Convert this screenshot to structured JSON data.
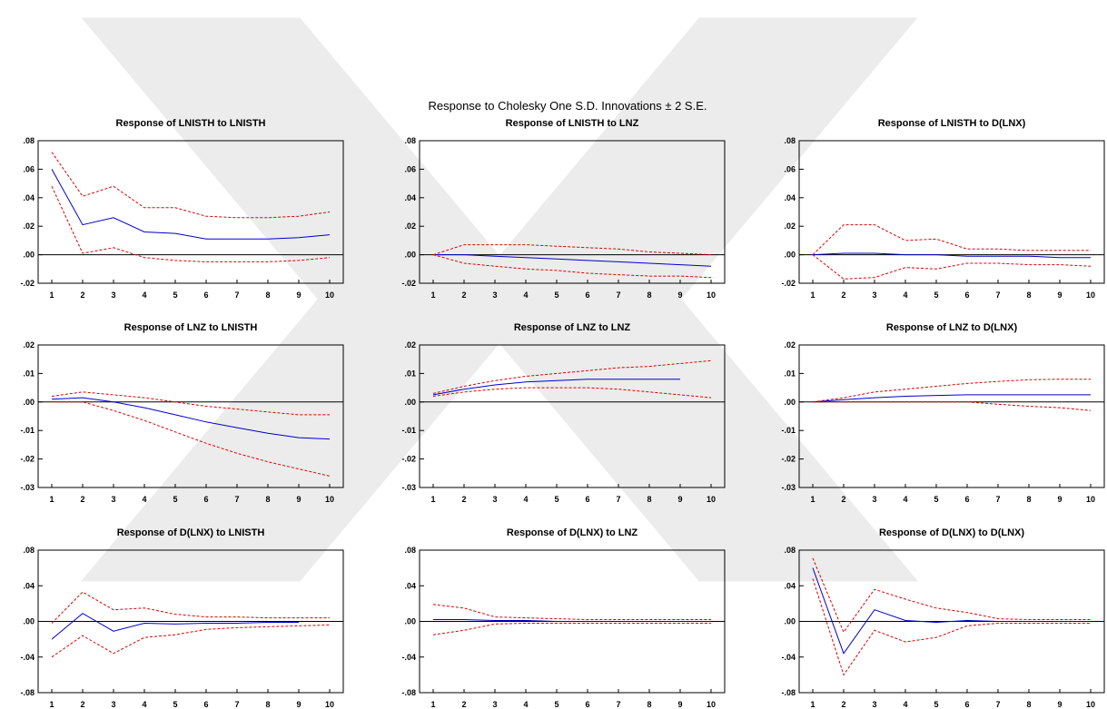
{
  "figure_title": "Response to Cholesky One S.D. Innovations ± 2 S.E.",
  "colors": {
    "response": "#0000cc",
    "band": "#dd0000",
    "axis": "#000000",
    "watermark": "#ececec"
  },
  "chart_data": [
    {
      "type": "line",
      "title": "Response of LNISTH to LNISTH",
      "x": [
        1,
        2,
        3,
        4,
        5,
        6,
        7,
        8,
        9,
        10
      ],
      "xtick_labels": [
        "1",
        "2",
        "3",
        "4",
        "5",
        "6",
        "7",
        "8",
        "9",
        "10"
      ],
      "ylim": [
        -0.02,
        0.08
      ],
      "yticks": [
        -0.02,
        0.0,
        0.02,
        0.04,
        0.06,
        0.08
      ],
      "ytick_labels": [
        "-.02",
        ".00",
        ".02",
        ".04",
        ".06",
        ".08"
      ],
      "zero_line": true,
      "series": [
        {
          "role": "response",
          "values": [
            0.06,
            0.021,
            0.026,
            0.016,
            0.015,
            0.011,
            0.011,
            0.011,
            0.012,
            0.014
          ]
        },
        {
          "role": "upper",
          "values": [
            0.072,
            0.041,
            0.048,
            0.033,
            0.033,
            0.027,
            0.026,
            0.026,
            0.027,
            0.03
          ]
        },
        {
          "role": "lower",
          "values": [
            0.048,
            0.001,
            0.005,
            -0.002,
            -0.004,
            -0.005,
            -0.005,
            -0.005,
            -0.004,
            -0.002
          ]
        }
      ]
    },
    {
      "type": "line",
      "title": "Response of LNISTH to LNZ",
      "x": [
        1,
        2,
        3,
        4,
        5,
        6,
        7,
        8,
        9,
        10
      ],
      "xtick_labels": [
        "1",
        "2",
        "3",
        "4",
        "5",
        "6",
        "7",
        "8",
        "9",
        "10"
      ],
      "ylim": [
        -0.02,
        0.08
      ],
      "yticks": [
        -0.02,
        0.0,
        0.02,
        0.04,
        0.06,
        0.08
      ],
      "ytick_labels": [
        "-.02",
        ".00",
        ".02",
        ".04",
        ".06",
        ".08"
      ],
      "zero_line": true,
      "series": [
        {
          "role": "response",
          "values": [
            0.0,
            0.0,
            -0.001,
            -0.002,
            -0.003,
            -0.004,
            -0.005,
            -0.006,
            -0.007,
            -0.008
          ]
        },
        {
          "role": "upper",
          "values": [
            0.0,
            0.007,
            0.007,
            0.007,
            0.006,
            0.005,
            0.004,
            0.002,
            0.001,
            0.0
          ]
        },
        {
          "role": "lower",
          "values": [
            0.0,
            -0.006,
            -0.008,
            -0.01,
            -0.011,
            -0.013,
            -0.014,
            -0.015,
            -0.015,
            -0.016
          ]
        }
      ]
    },
    {
      "type": "line",
      "title": "Response of LNISTH to D(LNX)",
      "x": [
        1,
        2,
        3,
        4,
        5,
        6,
        7,
        8,
        9,
        10
      ],
      "xtick_labels": [
        "1",
        "2",
        "3",
        "4",
        "5",
        "6",
        "7",
        "8",
        "9",
        "10"
      ],
      "ylim": [
        -0.02,
        0.08
      ],
      "yticks": [
        -0.02,
        0.0,
        0.02,
        0.04,
        0.06,
        0.08
      ],
      "ytick_labels": [
        "-.02",
        ".00",
        ".02",
        ".04",
        ".06",
        ".08"
      ],
      "zero_line": true,
      "series": [
        {
          "role": "response",
          "values": [
            0.0,
            0.001,
            0.001,
            0.0,
            0.0,
            -0.001,
            -0.001,
            -0.001,
            -0.002,
            -0.002
          ]
        },
        {
          "role": "upper",
          "values": [
            0.0,
            0.021,
            0.021,
            0.01,
            0.011,
            0.004,
            0.004,
            0.003,
            0.003,
            0.003
          ]
        },
        {
          "role": "lower",
          "values": [
            0.0,
            -0.017,
            -0.016,
            -0.009,
            -0.01,
            -0.006,
            -0.006,
            -0.007,
            -0.007,
            -0.008
          ]
        }
      ]
    },
    {
      "type": "line",
      "title": "Response of LNZ to LNISTH",
      "x": [
        1,
        2,
        3,
        4,
        5,
        6,
        7,
        8,
        9,
        10
      ],
      "xtick_labels": [
        "1",
        "2",
        "3",
        "4",
        "5",
        "6",
        "7",
        "8",
        "9",
        "10"
      ],
      "ylim": [
        -0.03,
        0.02
      ],
      "yticks": [
        -0.03,
        -0.02,
        -0.01,
        0.0,
        0.01,
        0.02
      ],
      "ytick_labels": [
        "-.03",
        "-.02",
        "-.01",
        ".00",
        ".01",
        ".02"
      ],
      "zero_line": true,
      "series": [
        {
          "role": "response",
          "values": [
            0.001,
            0.0015,
            0.0,
            -0.002,
            -0.0045,
            -0.007,
            -0.009,
            -0.011,
            -0.0125,
            -0.013
          ]
        },
        {
          "role": "upper",
          "values": [
            0.002,
            0.0035,
            0.0025,
            0.0015,
            0.0,
            -0.0015,
            -0.0025,
            -0.0035,
            -0.0045,
            -0.0045
          ]
        },
        {
          "role": "lower",
          "values": [
            0.0,
            0.0,
            -0.003,
            -0.0065,
            -0.0105,
            -0.0145,
            -0.018,
            -0.021,
            -0.0235,
            -0.026
          ]
        }
      ]
    },
    {
      "type": "line",
      "title": "Response of LNZ to LNZ",
      "x": [
        1,
        2,
        3,
        4,
        5,
        6,
        7,
        8,
        9,
        10
      ],
      "xtick_labels": [
        "1",
        "2",
        "3",
        "4",
        "5",
        "6",
        "7",
        "8",
        "9",
        "10"
      ],
      "ylim": [
        -0.03,
        0.02
      ],
      "yticks": [
        -0.03,
        -0.02,
        -0.01,
        0.0,
        0.01,
        0.02
      ],
      "ytick_labels": [
        "-.03",
        "-.02",
        "-.01",
        ".00",
        ".01",
        ".02"
      ],
      "zero_line": true,
      "series": [
        {
          "role": "response",
          "values": [
            0.0025,
            0.0045,
            0.006,
            0.007,
            0.0075,
            0.008,
            0.008,
            0.008,
            0.008,
            null
          ]
        },
        {
          "role": "upper",
          "values": [
            0.003,
            0.0055,
            0.0075,
            0.009,
            0.01,
            0.011,
            0.012,
            0.0125,
            0.0135,
            0.0145
          ]
        },
        {
          "role": "lower",
          "values": [
            0.002,
            0.0035,
            0.0045,
            0.005,
            0.005,
            0.005,
            0.0045,
            0.0035,
            0.0025,
            0.0015
          ]
        }
      ]
    },
    {
      "type": "line",
      "title": "Response of LNZ to D(LNX)",
      "x": [
        1,
        2,
        3,
        4,
        5,
        6,
        7,
        8,
        9,
        10
      ],
      "xtick_labels": [
        "1",
        "2",
        "3",
        "4",
        "5",
        "6",
        "7",
        "8",
        "9",
        "10"
      ],
      "ylim": [
        -0.03,
        0.02
      ],
      "yticks": [
        -0.03,
        -0.02,
        -0.01,
        0.0,
        0.01,
        0.02
      ],
      "ytick_labels": [
        "-.03",
        "-.02",
        "-.01",
        ".00",
        ".01",
        ".02"
      ],
      "zero_line": true,
      "series": [
        {
          "role": "response",
          "values": [
            0.0,
            0.0008,
            0.0015,
            0.002,
            0.0023,
            0.0025,
            0.0025,
            0.0025,
            0.0025,
            0.0025
          ]
        },
        {
          "role": "upper",
          "values": [
            0.0,
            0.0015,
            0.0035,
            0.0045,
            0.0055,
            0.0065,
            0.0072,
            0.0078,
            0.008,
            0.008
          ]
        },
        {
          "role": "lower",
          "values": [
            0.0,
            0.0,
            0.0,
            0.0,
            0.0,
            0.0,
            -0.0008,
            -0.0015,
            -0.002,
            -0.003
          ]
        }
      ]
    },
    {
      "type": "line",
      "title": "Response of D(LNX) to LNISTH",
      "x": [
        1,
        2,
        3,
        4,
        5,
        6,
        7,
        8,
        9,
        10
      ],
      "xtick_labels": [
        "1",
        "2",
        "3",
        "4",
        "5",
        "6",
        "7",
        "8",
        "9",
        "10"
      ],
      "ylim": [
        -0.08,
        0.08
      ],
      "yticks": [
        -0.08,
        -0.04,
        0.0,
        0.04,
        0.08
      ],
      "ytick_labels": [
        "-.08",
        "-.04",
        ".00",
        ".04",
        ".08"
      ],
      "zero_line": true,
      "series": [
        {
          "role": "response",
          "values": [
            -0.02,
            0.009,
            -0.011,
            -0.002,
            -0.003,
            -0.002,
            -0.002,
            -0.001,
            -0.001,
            null
          ]
        },
        {
          "role": "upper",
          "values": [
            -0.002,
            0.033,
            0.013,
            0.015,
            0.008,
            0.005,
            0.005,
            0.004,
            0.004,
            0.004
          ]
        },
        {
          "role": "lower",
          "values": [
            -0.04,
            -0.016,
            -0.036,
            -0.018,
            -0.015,
            -0.009,
            -0.007,
            -0.006,
            -0.005,
            -0.004
          ]
        }
      ]
    },
    {
      "type": "line",
      "title": "Response of D(LNX) to LNZ",
      "x": [
        1,
        2,
        3,
        4,
        5,
        6,
        7,
        8,
        9,
        10
      ],
      "xtick_labels": [
        "1",
        "2",
        "3",
        "4",
        "5",
        "6",
        "7",
        "8",
        "9",
        "10"
      ],
      "ylim": [
        -0.08,
        0.08
      ],
      "yticks": [
        -0.08,
        -0.04,
        0.0,
        0.04,
        0.08
      ],
      "ytick_labels": [
        "-.08",
        "-.04",
        ".00",
        ".04",
        ".08"
      ],
      "zero_line": true,
      "series": [
        {
          "role": "response",
          "values": [
            0.002,
            0.002,
            0.001,
            0.001,
            0.0,
            0.0,
            0.0,
            0.0,
            0.0,
            0.0
          ]
        },
        {
          "role": "upper",
          "values": [
            0.019,
            0.015,
            0.005,
            0.004,
            0.003,
            0.002,
            0.002,
            0.002,
            0.002,
            0.002
          ]
        },
        {
          "role": "lower",
          "values": [
            -0.015,
            -0.01,
            -0.003,
            -0.002,
            -0.002,
            -0.002,
            -0.002,
            -0.002,
            -0.002,
            -0.002
          ]
        }
      ]
    },
    {
      "type": "line",
      "title": "Response of D(LNX) to D(LNX)",
      "x": [
        1,
        2,
        3,
        4,
        5,
        6,
        7,
        8,
        9,
        10
      ],
      "xtick_labels": [
        "1",
        "2",
        "3",
        "4",
        "5",
        "6",
        "7",
        "8",
        "9",
        "10"
      ],
      "ylim": [
        -0.08,
        0.08
      ],
      "yticks": [
        -0.08,
        -0.04,
        0.0,
        0.04,
        0.08
      ],
      "ytick_labels": [
        "-.08",
        "-.04",
        ".00",
        ".04",
        ".08"
      ],
      "zero_line": true,
      "series": [
        {
          "role": "response",
          "values": [
            0.06,
            -0.036,
            0.013,
            0.001,
            -0.001,
            0.001,
            0.0,
            0.0,
            0.0,
            0.0
          ]
        },
        {
          "role": "upper",
          "values": [
            0.071,
            -0.012,
            0.036,
            0.025,
            0.015,
            0.01,
            0.003,
            0.002,
            0.002,
            0.002
          ]
        },
        {
          "role": "lower",
          "values": [
            0.048,
            -0.06,
            -0.01,
            -0.023,
            -0.018,
            -0.005,
            -0.002,
            -0.002,
            -0.002,
            -0.002
          ]
        }
      ]
    }
  ]
}
